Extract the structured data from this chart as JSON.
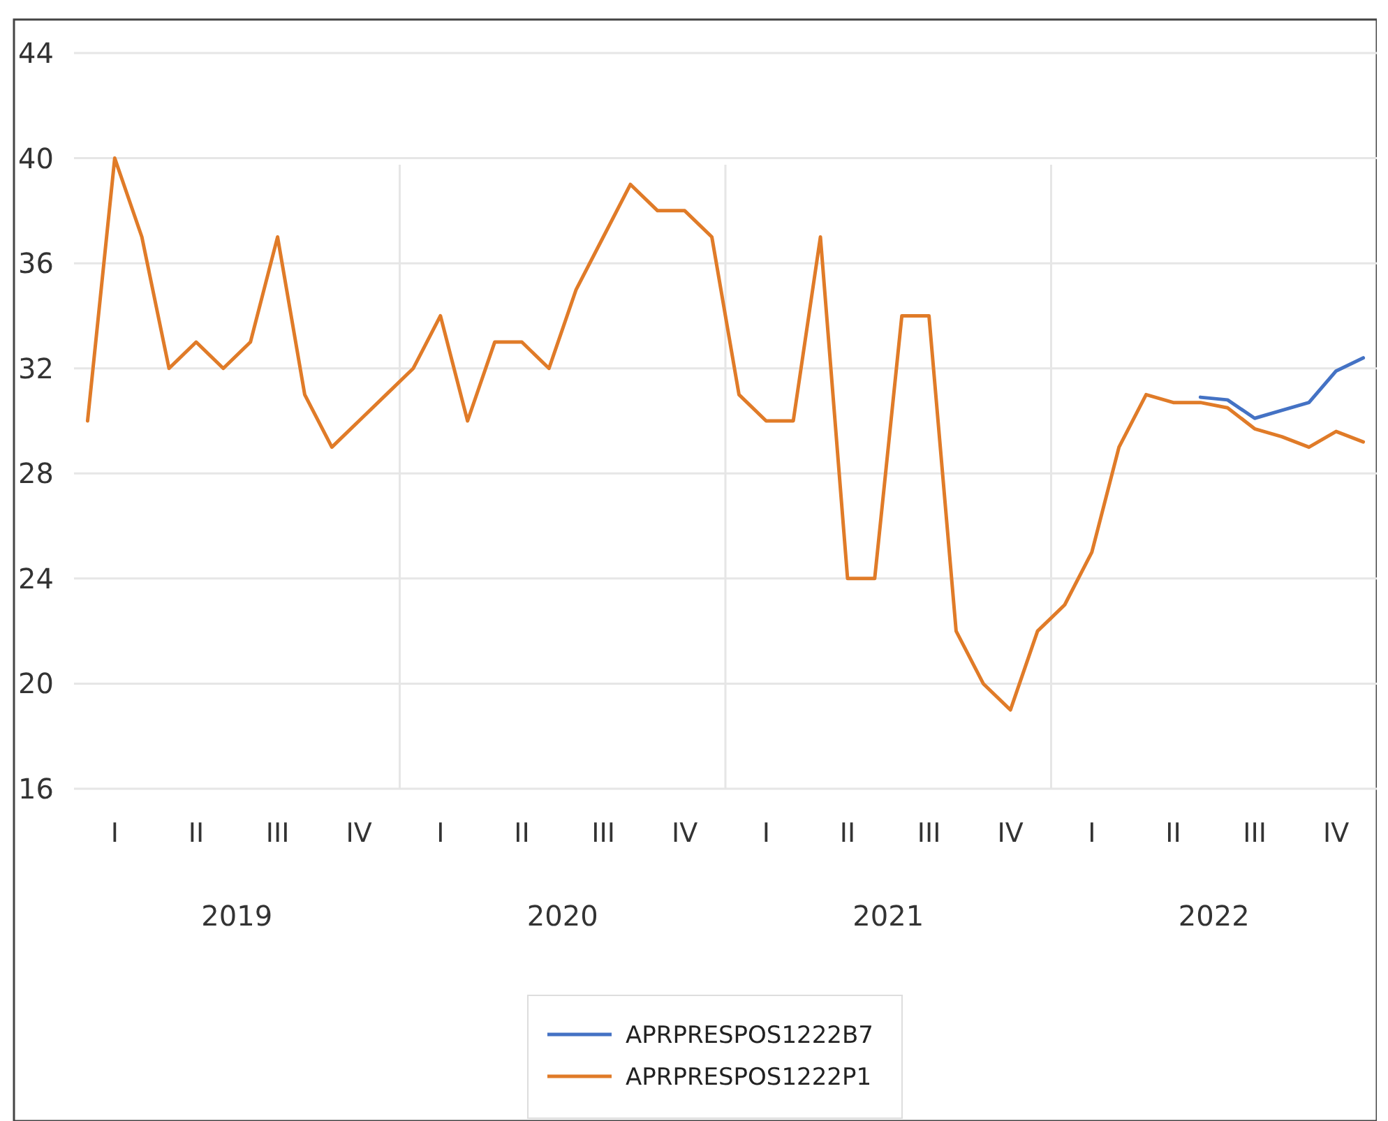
{
  "chart_data": {
    "type": "line",
    "categories": [
      null,
      "I",
      null,
      null,
      "II",
      null,
      null,
      "III",
      null,
      null,
      "IV",
      null,
      null,
      "I",
      null,
      null,
      "II",
      null,
      null,
      "III",
      null,
      null,
      "IV",
      null,
      null,
      "I",
      null,
      null,
      "II",
      null,
      null,
      "III",
      null,
      null,
      "IV",
      null,
      null,
      "I",
      null,
      null,
      "II",
      null,
      null,
      "III",
      null,
      null,
      "IV",
      null
    ],
    "series": [
      {
        "name": "APRPRESPOS1222B7",
        "color": "#4472c4",
        "values": [
          null,
          null,
          null,
          null,
          null,
          null,
          null,
          null,
          null,
          null,
          null,
          null,
          null,
          null,
          null,
          null,
          null,
          null,
          null,
          null,
          null,
          null,
          null,
          null,
          null,
          null,
          null,
          null,
          null,
          null,
          null,
          null,
          null,
          null,
          null,
          null,
          null,
          null,
          null,
          null,
          null,
          30.9,
          30.8,
          30.1,
          30.4,
          30.7,
          31.9,
          32.4
        ]
      },
      {
        "name": "APRPRESPOS1222P1",
        "color": "#e07b28",
        "values": [
          30,
          40,
          37,
          32,
          33,
          32,
          33,
          37,
          31,
          29,
          30,
          31,
          32,
          34,
          30,
          33,
          33,
          32,
          35,
          37,
          39,
          38,
          38,
          37,
          31,
          30,
          30,
          37,
          24,
          24,
          34,
          34,
          22,
          20,
          19,
          22,
          23,
          25,
          29,
          31,
          30.7,
          30.7,
          30.5,
          29.7,
          29.4,
          29.0,
          29.6,
          29.2
        ]
      }
    ],
    "annotations": [
      "2019",
      "2020",
      "2021",
      "2022"
    ],
    "ylim": [
      16,
      44
    ],
    "yticks": [
      16,
      20,
      24,
      28,
      32,
      36,
      40,
      44
    ],
    "grid": "y",
    "legend": "bottom",
    "marker": "none",
    "line_style": "solid"
  }
}
